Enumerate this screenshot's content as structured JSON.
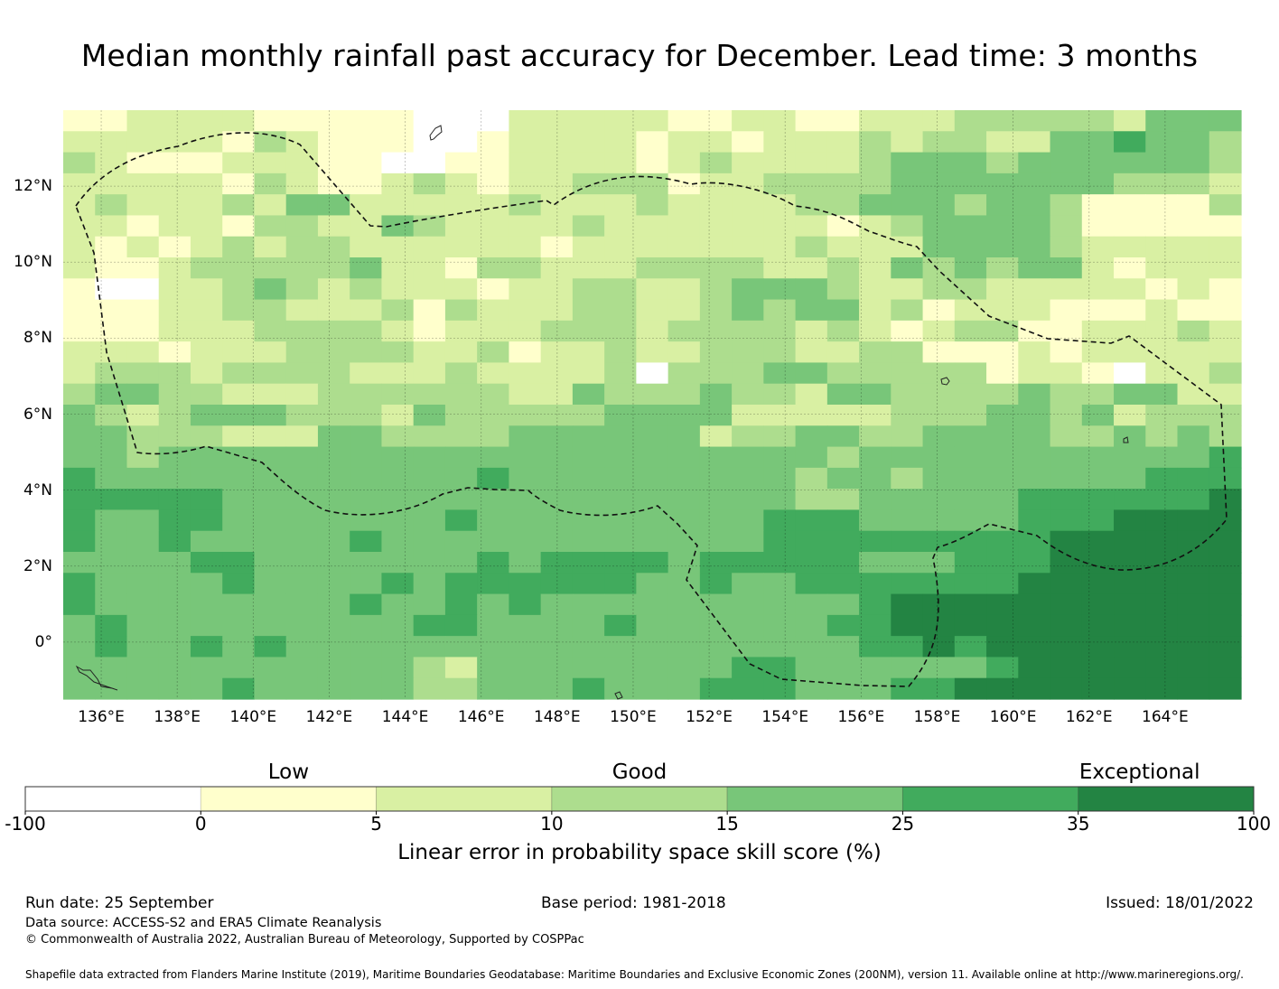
{
  "title": "Median monthly rainfall past accuracy for December. Lead time: 3 months",
  "chart_data": {
    "type": "heatmap",
    "title": "Median monthly rainfall past accuracy for December. Lead time: 3 months",
    "xlabel": "",
    "ylabel": "",
    "x_range_deg_e": [
      135.0,
      166.0
    ],
    "y_range_deg_n": [
      -1.5,
      14.0
    ],
    "x_ticks": [
      "136°E",
      "138°E",
      "140°E",
      "142°E",
      "144°E",
      "146°E",
      "148°E",
      "150°E",
      "152°E",
      "154°E",
      "156°E",
      "158°E",
      "160°E",
      "162°E",
      "164°E"
    ],
    "x_tick_values": [
      136,
      138,
      140,
      142,
      144,
      146,
      148,
      150,
      152,
      154,
      156,
      158,
      160,
      162,
      164
    ],
    "y_ticks": [
      "12°N",
      "10°N",
      "8°N",
      "6°N",
      "4°N",
      "2°N",
      "0°"
    ],
    "y_tick_values": [
      12,
      10,
      8,
      6,
      4,
      2,
      0
    ],
    "grid": true,
    "colorbar": {
      "label": "Linear error in probability space skill score (%)",
      "bounds": [
        -100,
        0,
        5,
        10,
        15,
        25,
        35,
        100
      ],
      "tick_labels": [
        "-100",
        "0",
        "5",
        "10",
        "15",
        "25",
        "35",
        "100"
      ],
      "colors": [
        "#ffffff",
        "#ffffcc",
        "#d9f0a3",
        "#addd8e",
        "#78c679",
        "#41ab5d",
        "#238443"
      ],
      "categories": [
        {
          "label": "Low",
          "at_value_index": 1.5
        },
        {
          "label": "Good",
          "at_value_index": 3.5
        },
        {
          "label": "Exceptional",
          "at_value_index": 6.35
        }
      ],
      "placement": "bottom"
    },
    "cell_legend": "Each character is a colour class index into colorbar.colors (0 = below 0%, 1 = 0-5, 2 = 5-10, 3 = 10-15, 4 = 15-25, 5 = 25-35, 6 = 35-100). Rows run north to south, columns west to east.",
    "cells": [
      "1122221111100022222112211222333332444",
      "2222213211100122221221222323322445443",
      "3211122211001122221232222344434444443",
      "2222213211232122333122333344444443332",
      "2322232442222232223222233444344311113",
      "2212213322432222322222221234444311111",
      "2121232332222221222222232224444322222",
      "2112333334221332223333223243434421222",
      "1002234323222122332234443223322222121",
      "1112233222313222332234344231222111211",
      "1112223333212223332333323212331122232",
      "2221222333322312232233322331112122222",
      "2333233332223222230333443333312210223",
      "3443322233333322433343324433334334422",
      "4323444333243333344442222233344342333",
      "4433322244333344444423344334444334343",
      "4434444444444444444444443444444444445",
      "5444444444444544444444434434444444555",
      "5555544444444444444444433444445555556",
      "5445544444445444444444555444445556666",
      "5445444445444444444444555555555666666",
      "4444554444444545555455555444555666666",
      "5444454444545555554454455555556666666",
      "5444444445445454444444444566666666666",
      "4544444444455444454444445566666666666",
      "4544545444444444444444444556566666666",
      "4444444444432444444445544444456666666",
      "4444454444433444544455544455666666666"
    ]
  },
  "footer": {
    "run_date": "Run date: 25 September",
    "base_period": "Base period: 1981-2018",
    "issued": "Issued: 18/01/2022",
    "data_source": "Data source: ACCESS-S2 and ERA5 Climate Reanalysis",
    "copyright": "© Commonwealth of Australia 2022, Australian Bureau of Meteorology, Supported by COSPPac",
    "shapefile_note": "Shapefile data extracted from Flanders Marine Institute (2019), Maritime Boundaries Geodatabase: Maritime Boundaries and Exclusive Economic Zones (200NM), version 11. Available online at http://www.marineregions.org/."
  }
}
